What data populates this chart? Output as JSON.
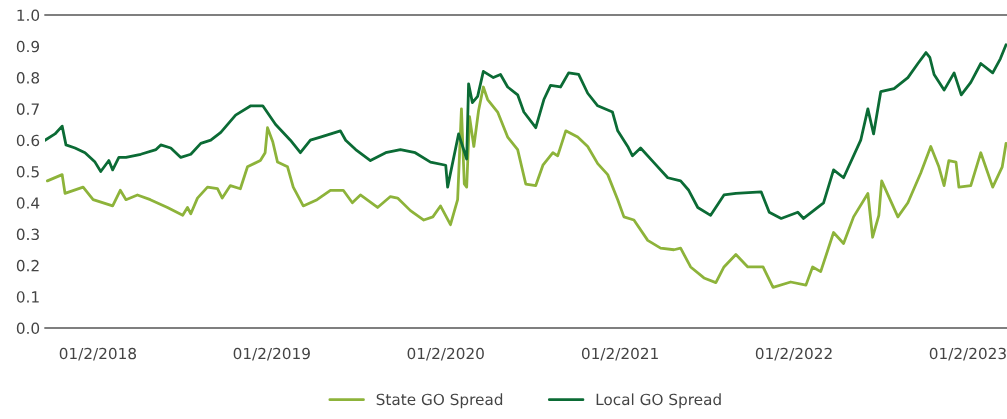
{
  "chart_data": {
    "type": "line",
    "xlim": [
      "2017-09-13",
      "2023-03-25"
    ],
    "xticks": [
      {
        "value": "2018-01-02",
        "label": "01/2/2018"
      },
      {
        "value": "2019-01-02",
        "label": "01/2/2019"
      },
      {
        "value": "2020-01-02",
        "label": "01/2/2020"
      },
      {
        "value": "2021-01-02",
        "label": "01/2/2021"
      },
      {
        "value": "2022-01-02",
        "label": "01/2/2022"
      },
      {
        "value": "2023-01-02",
        "label": "01/2/2023"
      }
    ],
    "ylim": [
      0,
      1
    ],
    "yticks": [
      {
        "value": 0,
        "label": "0.0"
      },
      {
        "value": 0.1,
        "label": "0.1"
      },
      {
        "value": 0.2,
        "label": "0.2"
      },
      {
        "value": 0.3,
        "label": "0.3"
      },
      {
        "value": 0.4,
        "label": "0.4"
      },
      {
        "value": 0.5,
        "label": "0.5"
      },
      {
        "value": 0.6,
        "label": "0.6"
      },
      {
        "value": 0.7,
        "label": "0.7"
      },
      {
        "value": 0.8,
        "label": "0.8"
      },
      {
        "value": 0.9,
        "label": "0.9"
      },
      {
        "value": 1,
        "label": "1.0"
      }
    ],
    "grid": false,
    "legend": "bottom",
    "marker": "none",
    "line_style": "solid",
    "series": [
      {
        "name": "State GO Spread",
        "color": "#8db33a",
        "x": [
          "2017-09-18",
          "2017-10-19",
          "2017-10-25",
          "2017-12-02",
          "2017-12-23",
          "2018-02-02",
          "2018-02-18",
          "2018-03-02",
          "2018-03-26",
          "2018-04-22",
          "2018-05-28",
          "2018-06-29",
          "2018-07-09",
          "2018-07-16",
          "2018-07-30",
          "2018-08-20",
          "2018-09-10",
          "2018-09-20",
          "2018-10-07",
          "2018-10-28",
          "2018-11-12",
          "2018-12-09",
          "2018-12-19",
          "2018-12-24",
          "2019-01-04",
          "2019-01-14",
          "2019-02-04",
          "2019-02-16",
          "2019-03-09",
          "2019-04-07",
          "2019-05-05",
          "2019-06-01",
          "2019-06-20",
          "2019-07-07",
          "2019-08-12",
          "2019-09-08",
          "2019-09-23",
          "2019-10-20",
          "2019-11-17",
          "2019-12-06",
          "2019-12-22",
          "2020-01-12",
          "2020-01-27",
          "2020-02-04",
          "2020-02-10",
          "2020-02-15",
          "2020-02-21",
          "2020-03-01",
          "2020-03-11",
          "2020-03-21",
          "2020-03-30",
          "2020-04-20",
          "2020-05-11",
          "2020-06-01",
          "2020-06-18",
          "2020-07-09",
          "2020-07-24",
          "2020-08-14",
          "2020-08-24",
          "2020-09-10",
          "2020-10-05",
          "2020-10-26",
          "2020-11-16",
          "2020-12-07",
          "2020-12-28",
          "2021-01-10",
          "2021-01-31",
          "2021-03-01",
          "2021-03-28",
          "2021-04-25",
          "2021-05-09",
          "2021-05-30",
          "2021-06-27",
          "2021-07-22",
          "2021-08-08",
          "2021-09-02",
          "2021-09-27",
          "2021-10-29",
          "2021-11-19",
          "2021-12-26",
          "2022-01-27",
          "2022-02-10",
          "2022-02-27",
          "2022-03-26",
          "2022-04-16",
          "2022-05-07",
          "2022-06-06",
          "2022-06-16",
          "2022-06-29",
          "2022-07-05",
          "2022-08-08",
          "2022-08-29",
          "2022-09-25",
          "2022-10-16",
          "2022-11-02",
          "2022-11-13",
          "2022-11-23",
          "2022-12-08",
          "2022-12-14",
          "2023-01-08",
          "2023-01-29",
          "2023-02-23",
          "2023-03-15",
          "2023-03-23"
        ],
        "values": [
          0.47,
          0.49,
          0.43,
          0.45,
          0.41,
          0.39,
          0.44,
          0.41,
          0.425,
          0.41,
          0.385,
          0.36,
          0.385,
          0.365,
          0.415,
          0.45,
          0.445,
          0.415,
          0.455,
          0.445,
          0.515,
          0.535,
          0.56,
          0.64,
          0.595,
          0.53,
          0.515,
          0.45,
          0.39,
          0.41,
          0.44,
          0.44,
          0.4,
          0.425,
          0.385,
          0.42,
          0.415,
          0.375,
          0.345,
          0.355,
          0.39,
          0.33,
          0.41,
          0.7,
          0.46,
          0.45,
          0.675,
          0.58,
          0.695,
          0.77,
          0.73,
          0.69,
          0.61,
          0.57,
          0.46,
          0.455,
          0.52,
          0.56,
          0.55,
          0.63,
          0.61,
          0.58,
          0.525,
          0.49,
          0.41,
          0.355,
          0.345,
          0.28,
          0.255,
          0.25,
          0.255,
          0.195,
          0.16,
          0.145,
          0.195,
          0.235,
          0.195,
          0.195,
          0.13,
          0.147,
          0.137,
          0.195,
          0.18,
          0.305,
          0.27,
          0.355,
          0.43,
          0.29,
          0.36,
          0.47,
          0.355,
          0.4,
          0.495,
          0.58,
          0.515,
          0.455,
          0.535,
          0.53,
          0.45,
          0.455,
          0.56,
          0.45,
          0.515,
          0.59
        ]
      },
      {
        "name": "Local GO Spread",
        "color": "#0b6b35",
        "x": [
          "2017-09-13",
          "2017-10-04",
          "2017-10-19",
          "2017-10-27",
          "2017-11-15",
          "2017-12-06",
          "2017-12-27",
          "2018-01-08",
          "2018-01-25",
          "2018-02-02",
          "2018-02-15",
          "2018-03-02",
          "2018-04-02",
          "2018-05-04",
          "2018-05-14",
          "2018-06-04",
          "2018-06-25",
          "2018-07-16",
          "2018-08-06",
          "2018-08-27",
          "2018-09-17",
          "2018-10-18",
          "2018-11-19",
          "2018-12-14",
          "2019-01-10",
          "2019-02-10",
          "2019-03-03",
          "2019-03-24",
          "2019-04-14",
          "2019-05-26",
          "2019-06-06",
          "2019-06-27",
          "2019-07-28",
          "2019-08-29",
          "2019-09-29",
          "2019-10-30",
          "2019-12-01",
          "2020-01-02",
          "2020-01-06",
          "2020-01-29",
          "2020-02-15",
          "2020-02-19",
          "2020-02-27",
          "2020-03-09",
          "2020-03-21",
          "2020-04-11",
          "2020-04-26",
          "2020-05-11",
          "2020-06-01",
          "2020-06-14",
          "2020-07-09",
          "2020-07-26",
          "2020-08-09",
          "2020-08-30",
          "2020-09-16",
          "2020-10-07",
          "2020-10-26",
          "2020-11-16",
          "2020-12-17",
          "2020-12-28",
          "2021-01-18",
          "2021-01-28",
          "2021-02-14",
          "2021-03-13",
          "2021-04-12",
          "2021-05-09",
          "2021-05-26",
          "2021-06-14",
          "2021-07-11",
          "2021-08-08",
          "2021-09-02",
          "2021-10-25",
          "2021-11-11",
          "2021-12-06",
          "2022-01-10",
          "2022-01-22",
          "2022-03-05",
          "2022-03-26",
          "2022-04-16",
          "2022-05-22",
          "2022-06-06",
          "2022-06-18",
          "2022-07-03",
          "2022-07-31",
          "2022-08-29",
          "2022-09-19",
          "2022-10-06",
          "2022-10-14",
          "2022-10-23",
          "2022-11-13",
          "2022-12-04",
          "2022-12-19",
          "2023-01-08",
          "2023-01-29",
          "2023-02-23",
          "2023-03-11",
          "2023-03-23"
        ],
        "values": [
          0.6,
          0.62,
          0.645,
          0.585,
          0.575,
          0.56,
          0.53,
          0.5,
          0.535,
          0.505,
          0.545,
          0.545,
          0.555,
          0.57,
          0.585,
          0.575,
          0.545,
          0.555,
          0.59,
          0.6,
          0.625,
          0.68,
          0.71,
          0.71,
          0.65,
          0.6,
          0.56,
          0.6,
          0.61,
          0.63,
          0.6,
          0.57,
          0.535,
          0.56,
          0.57,
          0.56,
          0.53,
          0.52,
          0.45,
          0.62,
          0.54,
          0.78,
          0.72,
          0.74,
          0.82,
          0.8,
          0.81,
          0.77,
          0.745,
          0.69,
          0.64,
          0.73,
          0.775,
          0.77,
          0.815,
          0.81,
          0.75,
          0.71,
          0.69,
          0.63,
          0.58,
          0.55,
          0.575,
          0.53,
          0.48,
          0.47,
          0.44,
          0.385,
          0.36,
          0.425,
          0.43,
          0.435,
          0.37,
          0.35,
          0.37,
          0.35,
          0.4,
          0.505,
          0.48,
          0.6,
          0.7,
          0.62,
          0.755,
          0.765,
          0.8,
          0.845,
          0.88,
          0.865,
          0.81,
          0.76,
          0.815,
          0.745,
          0.785,
          0.845,
          0.815,
          0.86,
          0.905
        ]
      }
    ]
  }
}
